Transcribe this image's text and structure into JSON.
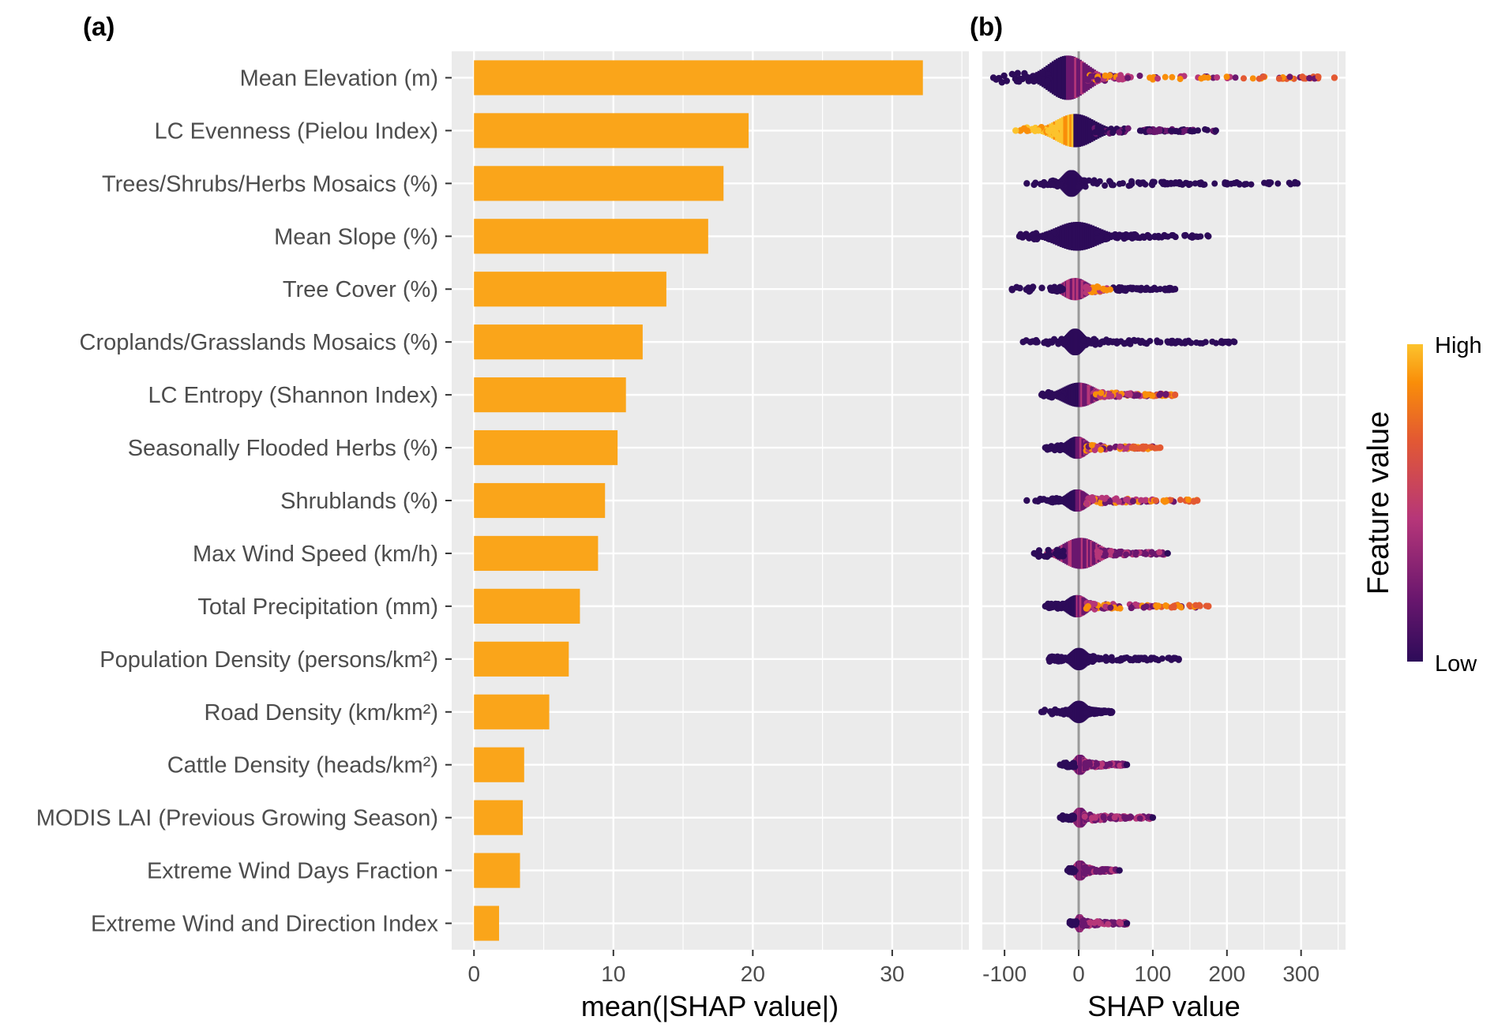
{
  "panels": {
    "a": "(a)",
    "b": "(b)"
  },
  "chart_data": [
    {
      "type": "bar",
      "panel": "(a)",
      "orientation": "horizontal",
      "xlabel": "mean(|SHAP value|)",
      "ylabel": "",
      "xlim": [
        -1.6,
        35.5
      ],
      "xticks": [
        0,
        10,
        20,
        30
      ],
      "bar_color": "#FAA51A",
      "grid": true,
      "categories": [
        "Mean Elevation (m)",
        "LC Evenness (Pielou Index)",
        "Trees/Shrubs/Herbs Mosaics (%)",
        "Mean Slope (%)",
        "Tree Cover (%)",
        "Croplands/Grasslands Mosaics (%)",
        "LC Entropy (Shannon Index)",
        "Seasonally Flooded Herbs (%)",
        "Shrublands (%)",
        "Max Wind Speed (km/h)",
        "Total Precipitation (mm)",
        "Population Density (persons/km²)",
        "Road Density (km/km²)",
        "Cattle Density (heads/km²)",
        "MODIS LAI (Previous Growing Season)",
        "Extreme Wind Days Fraction",
        "Extreme Wind and Direction Index"
      ],
      "values": [
        32.2,
        19.7,
        17.9,
        16.8,
        13.8,
        12.1,
        10.9,
        10.3,
        9.4,
        8.9,
        7.6,
        6.8,
        5.4,
        3.6,
        3.5,
        3.3,
        1.8
      ]
    },
    {
      "type": "scatter",
      "subtype": "beeswarm",
      "panel": "(b)",
      "xlabel": "SHAP value",
      "ylabel": "",
      "xlim": [
        -130,
        360
      ],
      "xticks": [
        -100,
        0,
        100,
        200,
        300
      ],
      "zero_line": true,
      "grid": true,
      "colorbar": {
        "title": "Feature value",
        "high": "High",
        "low": "Low",
        "colors": [
          "#2D0B59",
          "#6A176E",
          "#B63679",
          "#E35932",
          "#F98E09",
          "#FCC32D"
        ]
      },
      "features": [
        {
          "name": "Mean Elevation (m)",
          "min": -115,
          "max": 345,
          "core": [
            -40,
            10
          ],
          "hi": "right",
          "width": 1.0
        },
        {
          "name": "LC Evenness (Pielou Index)",
          "min": -85,
          "max": 185,
          "core": [
            -30,
            20
          ],
          "hi": "left",
          "width": 0.75
        },
        {
          "name": "Trees/Shrubs/Herbs Mosaics (%)",
          "min": -70,
          "max": 295,
          "core": [
            -20,
            0
          ],
          "hi": "none",
          "width": 0.6
        },
        {
          "name": "Mean Slope (%)",
          "min": -80,
          "max": 175,
          "core": [
            -30,
            25
          ],
          "hi": "none",
          "width": 0.65
        },
        {
          "name": "Tree Cover (%)",
          "min": -90,
          "max": 130,
          "core": [
            -20,
            10
          ],
          "hi": "mid",
          "width": 0.5
        },
        {
          "name": "Croplands/Grasslands Mosaics (%)",
          "min": -75,
          "max": 210,
          "core": [
            -15,
            5
          ],
          "hi": "none",
          "width": 0.6
        },
        {
          "name": "LC Entropy (Shannon Index)",
          "min": -50,
          "max": 130,
          "core": [
            -20,
            20
          ],
          "hi": "right",
          "width": 0.55
        },
        {
          "name": "Seasonally Flooded Herbs (%)",
          "min": -45,
          "max": 110,
          "core": [
            -15,
            10
          ],
          "hi": "right",
          "width": 0.5
        },
        {
          "name": "Shrublands (%)",
          "min": -70,
          "max": 160,
          "core": [
            -15,
            10
          ],
          "hi": "right",
          "width": 0.5
        },
        {
          "name": "Max Wind Speed (km/h)",
          "min": -60,
          "max": 120,
          "core": [
            -20,
            25
          ],
          "hi": "mixed",
          "width": 0.7
        },
        {
          "name": "Total Precipitation (mm)",
          "min": -45,
          "max": 175,
          "core": [
            -15,
            10
          ],
          "hi": "right",
          "width": 0.5
        },
        {
          "name": "Population Density (persons/km²)",
          "min": -40,
          "max": 135,
          "core": [
            -10,
            10
          ],
          "hi": "none",
          "width": 0.5
        },
        {
          "name": "Road Density (km/km²)",
          "min": -50,
          "max": 45,
          "core": [
            -10,
            10
          ],
          "hi": "none",
          "width": 0.5
        },
        {
          "name": "Cattle Density (heads/km²)",
          "min": -25,
          "max": 65,
          "core": [
            -5,
            8
          ],
          "hi": "mixed",
          "width": 0.45
        },
        {
          "name": "MODIS LAI (Previous Growing Season)",
          "min": -25,
          "max": 100,
          "core": [
            -5,
            8
          ],
          "hi": "mixed",
          "width": 0.45
        },
        {
          "name": "Extreme Wind Days Fraction",
          "min": -15,
          "max": 55,
          "core": [
            -5,
            8
          ],
          "hi": "mixed",
          "width": 0.45
        },
        {
          "name": "Extreme Wind and Direction Index",
          "min": -12,
          "max": 65,
          "core": [
            -3,
            5
          ],
          "hi": "mixed",
          "width": 0.4
        }
      ]
    }
  ]
}
